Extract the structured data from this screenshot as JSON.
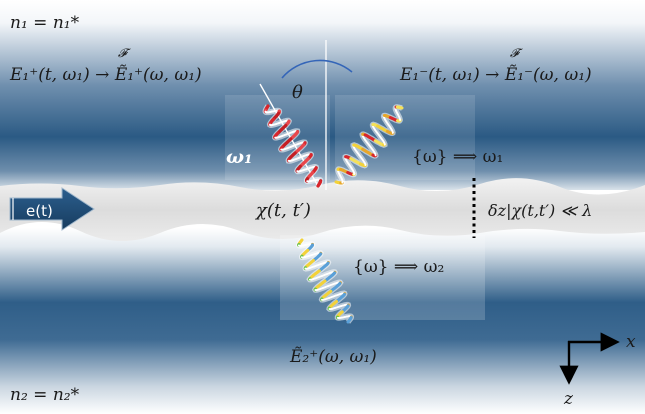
{
  "medium_top": {
    "label": "n₁ = n₁*"
  },
  "medium_bottom": {
    "label": "n₂ = n₂*"
  },
  "incident_field": {
    "label": "E₁⁺(t, ω₁) → Ẽ₁⁺(ω, ω₁)",
    "transform_symbol": "𝓕"
  },
  "reflected_field": {
    "label": "E₁⁻(t, ω₁) → Ẽ₁⁻(ω, ω₁)",
    "transform_symbol": "𝓕"
  },
  "transmitted_field": {
    "label": "Ẽ₂⁺(ω, ω₁)"
  },
  "angle_label": "θ",
  "incident_frequency": "ω₁",
  "reflected_conversion": "{ω} ⟹ ω₁",
  "transmitted_conversion": "{ω} ⟹ ω₂",
  "susceptibility": "χ(t, t′)",
  "thickness_condition": "δz|χ(t,t′) ≪ λ",
  "excitation": {
    "label": "e(t)"
  },
  "axes": {
    "x": "x",
    "z": "z"
  },
  "colors": {
    "medium_deep": "#27557f",
    "medium_light": "#dfe6ed",
    "film": "#e6e6e6",
    "arrow_fill": "#1f4e79",
    "angle_arc": "#3465b8",
    "incident_wave": "#d8262c"
  }
}
